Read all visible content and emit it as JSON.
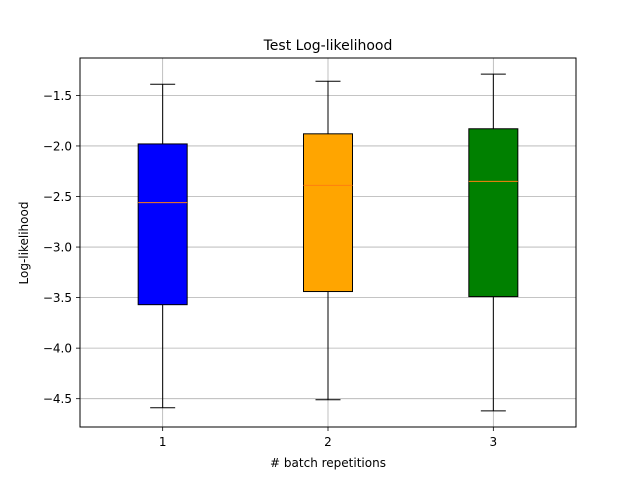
{
  "chart_data": {
    "type": "box",
    "title": "Test Log-likelihood",
    "xlabel": "# batch repetitions",
    "ylabel": "Log-likelihood",
    "ylim": [
      -4.78,
      -1.13
    ],
    "yticks": [
      -1.5,
      -2.0,
      -2.5,
      -3.0,
      -3.5,
      -4.0,
      -4.5
    ],
    "ytick_labels": [
      "−1.5",
      "−2.0",
      "−2.5",
      "−3.0",
      "−3.5",
      "−4.0",
      "−4.5"
    ],
    "categories": [
      "1",
      "2",
      "3"
    ],
    "grid": true,
    "boxes": [
      {
        "category": "1",
        "whisker_low": -4.59,
        "q1": -3.57,
        "median": -2.56,
        "q3": -1.98,
        "whisker_high": -1.39,
        "color": "#0000ff"
      },
      {
        "category": "2",
        "whisker_low": -4.51,
        "q1": -3.44,
        "median": -2.39,
        "q3": -1.88,
        "whisker_high": -1.36,
        "color": "#ffa500"
      },
      {
        "category": "3",
        "whisker_low": -4.62,
        "q1": -3.49,
        "median": -2.35,
        "q3": -1.83,
        "whisker_high": -1.29,
        "color": "#008000"
      }
    ],
    "median_color": "#ff7f0e"
  }
}
